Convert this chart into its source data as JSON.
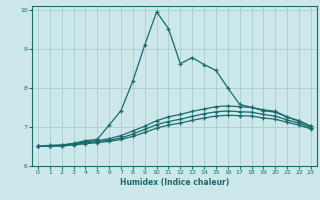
{
  "xlabel": "Humidex (Indice chaleur)",
  "xlim": [
    -0.5,
    23.5
  ],
  "ylim": [
    6,
    10.1
  ],
  "xticks": [
    0,
    1,
    2,
    3,
    4,
    5,
    6,
    7,
    8,
    9,
    10,
    11,
    12,
    13,
    14,
    15,
    16,
    17,
    18,
    19,
    20,
    21,
    22,
    23
  ],
  "yticks": [
    6,
    7,
    8,
    9,
    10
  ],
  "bg_color": "#cce8ea",
  "grid_color": "#aacdd0",
  "line_color": "#1a6b6b",
  "line1_y": [
    6.5,
    6.53,
    6.54,
    6.58,
    6.65,
    6.68,
    7.05,
    7.42,
    8.18,
    9.1,
    9.95,
    9.52,
    8.62,
    8.78,
    8.6,
    8.45,
    8.0,
    7.58,
    7.5,
    7.42,
    7.38,
    7.25,
    7.15,
    7.02
  ],
  "line2_y": [
    6.5,
    6.52,
    6.53,
    6.57,
    6.62,
    6.65,
    6.7,
    6.78,
    6.9,
    7.02,
    7.16,
    7.26,
    7.32,
    7.4,
    7.46,
    7.52,
    7.54,
    7.52,
    7.5,
    7.44,
    7.4,
    7.26,
    7.16,
    7.02
  ],
  "line3_y": [
    6.5,
    6.51,
    6.52,
    6.55,
    6.59,
    6.62,
    6.66,
    6.72,
    6.82,
    6.94,
    7.06,
    7.14,
    7.2,
    7.27,
    7.34,
    7.39,
    7.41,
    7.39,
    7.38,
    7.32,
    7.28,
    7.18,
    7.1,
    6.98
  ],
  "line4_y": [
    6.5,
    6.51,
    6.51,
    6.54,
    6.57,
    6.6,
    6.63,
    6.68,
    6.76,
    6.86,
    6.97,
    7.05,
    7.1,
    7.17,
    7.23,
    7.28,
    7.3,
    7.29,
    7.28,
    7.23,
    7.2,
    7.12,
    7.05,
    6.95
  ]
}
